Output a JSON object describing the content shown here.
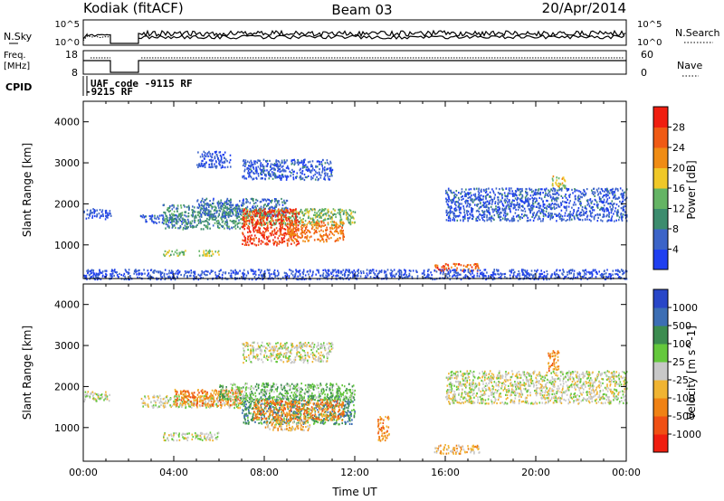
{
  "header": {
    "radar_title": "Kodiak (fitACF)",
    "beam": "Beam 03",
    "date": "20/Apr/2014"
  },
  "noise_panel": {
    "left_label": "N.Sky",
    "right_label": "N.Search",
    "left_ticks": [
      "10^5",
      "10^0"
    ],
    "right_ticks": [
      "10^5",
      "10^0"
    ]
  },
  "freq_panel": {
    "left_label_line1": "Freq.",
    "left_label_line2": "[MHz]",
    "left_ticks": [
      "18",
      "8"
    ],
    "right_label": "Nave",
    "right_ticks": [
      "60",
      "0"
    ]
  },
  "cpid_panel": {
    "label": "CPID",
    "entries": [
      "UAF code -9115 RF",
      "-9215 RF"
    ]
  },
  "chart_data": [
    {
      "type": "heatmap",
      "title": "",
      "xlabel": "",
      "ylabel": "Slant Range [km]",
      "xlim": [
        0,
        24
      ],
      "ylim": [
        180,
        4500
      ],
      "yticks": [
        "1000",
        "2000",
        "3000",
        "4000"
      ],
      "colorbar_label": "Power [dB]",
      "colorbar_ticks": [
        "4",
        "8",
        "12",
        "16",
        "20",
        "24",
        "28"
      ],
      "colorbar_range": [
        0,
        32
      ],
      "colors": [
        "#1f3ff0",
        "#3c64c8",
        "#3c8c6e",
        "#64b464",
        "#f0c828",
        "#f08c14",
        "#f05a14",
        "#f01e10"
      ],
      "regions": [
        {
          "t0": 0.0,
          "t1": 1.2,
          "r0": 1650,
          "r1": 1900,
          "v": 4
        },
        {
          "t0": 2.5,
          "t1": 4.5,
          "r0": 1550,
          "r1": 1750,
          "v": 5
        },
        {
          "t0": 3.5,
          "t1": 7.0,
          "r0": 1400,
          "r1": 2000,
          "v": 10
        },
        {
          "t0": 5.0,
          "t1": 9.0,
          "r0": 1700,
          "r1": 2150,
          "v": 7
        },
        {
          "t0": 7.0,
          "t1": 12.0,
          "r0": 1500,
          "r1": 1900,
          "v": 14
        },
        {
          "t0": 7.0,
          "t1": 9.5,
          "r0": 1000,
          "r1": 1900,
          "v": 28
        },
        {
          "t0": 9.0,
          "t1": 11.5,
          "r0": 1100,
          "r1": 1600,
          "v": 24
        },
        {
          "t0": 5.0,
          "t1": 6.0,
          "r0": 750,
          "r1": 900,
          "v": 16
        },
        {
          "t0": 3.5,
          "t1": 4.5,
          "r0": 750,
          "r1": 900,
          "v": 14
        },
        {
          "t0": 15.5,
          "t1": 17.5,
          "r0": 380,
          "r1": 560,
          "v": 26
        },
        {
          "t0": 7.0,
          "t1": 11.0,
          "r0": 2600,
          "r1": 3100,
          "v": 5
        },
        {
          "t0": 5.0,
          "t1": 6.5,
          "r0": 2900,
          "r1": 3300,
          "v": 4
        },
        {
          "t0": 16.0,
          "t1": 24.0,
          "r0": 1600,
          "r1": 2400,
          "v": 5
        },
        {
          "t0": 20.7,
          "t1": 21.3,
          "r0": 2400,
          "r1": 2700,
          "v": 18
        },
        {
          "t0": 0.0,
          "t1": 24.0,
          "r0": 180,
          "r1": 420,
          "v": 4
        }
      ]
    },
    {
      "type": "heatmap",
      "title": "",
      "xlabel": "Time UT",
      "ylabel": "Slant Range [km]",
      "xlim": [
        0,
        24
      ],
      "ylim": [
        180,
        4500
      ],
      "xticks": [
        "00:00",
        "04:00",
        "08:00",
        "12:00",
        "16:00",
        "20:00",
        "00:00"
      ],
      "yticks": [
        "1000",
        "2000",
        "3000",
        "4000"
      ],
      "colorbar_label": "Velocity [m s^-1]",
      "colorbar_ticks": [
        "1000",
        "500",
        "100",
        "25",
        "-25",
        "-100",
        "-500",
        "-1000"
      ],
      "colors": [
        "#2846c8",
        "#3c6eb4",
        "#3c8c50",
        "#64c83c",
        "#c8c8c8",
        "#f0b432",
        "#f08214",
        "#f05014",
        "#f01e10"
      ],
      "regions": [
        {
          "t0": 0.0,
          "t1": 1.2,
          "r0": 1650,
          "r1": 1900,
          "c": 4
        },
        {
          "t0": 2.5,
          "t1": 7.0,
          "r0": 1500,
          "r1": 1800,
          "c": 4
        },
        {
          "t0": 4.0,
          "t1": 7.0,
          "r0": 1550,
          "r1": 1950,
          "c": 6
        },
        {
          "t0": 7.0,
          "t1": 12.0,
          "r0": 1100,
          "r1": 1800,
          "c": 2
        },
        {
          "t0": 7.5,
          "t1": 11.5,
          "r0": 1200,
          "r1": 1700,
          "c": 6
        },
        {
          "t0": 8.0,
          "t1": 10.0,
          "r0": 950,
          "r1": 1200,
          "c": 5
        },
        {
          "t0": 6.0,
          "t1": 12.0,
          "r0": 1700,
          "r1": 2100,
          "c": 3
        },
        {
          "t0": 3.5,
          "t1": 6.0,
          "r0": 700,
          "r1": 900,
          "c": 4
        },
        {
          "t0": 15.5,
          "t1": 17.5,
          "r0": 380,
          "r1": 600,
          "c": 5
        },
        {
          "t0": 7.0,
          "t1": 11.0,
          "r0": 2600,
          "r1": 3100,
          "c": 4
        },
        {
          "t0": 16.0,
          "t1": 24.0,
          "r0": 1600,
          "r1": 2400,
          "c": 4
        },
        {
          "t0": 20.5,
          "t1": 21.0,
          "r0": 2400,
          "r1": 2900,
          "c": 6
        },
        {
          "t0": 13.0,
          "t1": 13.5,
          "r0": 700,
          "r1": 1300,
          "c": 6
        }
      ]
    }
  ]
}
